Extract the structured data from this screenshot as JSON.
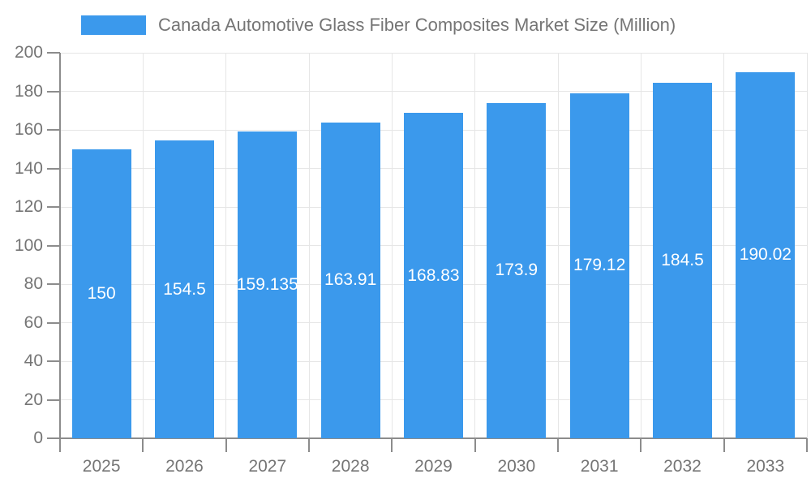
{
  "legend": {
    "label": "Canada Automotive Glass Fiber Composites Market Size (Million)"
  },
  "colors": {
    "bar": "#3B99EC",
    "grid": "#E6E6E6",
    "axis_line": "#8C8C8C",
    "axis_text": "#757575",
    "value_label": "#FFFFFF"
  },
  "chart_data": {
    "type": "bar",
    "title": "Canada Automotive Glass Fiber Composites Market Size (Million)",
    "categories": [
      "2025",
      "2026",
      "2027",
      "2028",
      "2029",
      "2030",
      "2031",
      "2032",
      "2033"
    ],
    "values": [
      150,
      154.5,
      159.135,
      163.91,
      168.83,
      173.9,
      179.12,
      184.5,
      190.02
    ],
    "value_labels": [
      "150",
      "154.5",
      "159.135",
      "163.91",
      "168.83",
      "173.9",
      "179.12",
      "184.5",
      "190.02"
    ],
    "xlabel": "",
    "ylabel": "",
    "ylim": [
      0,
      200
    ],
    "yticks": [
      0,
      20,
      40,
      60,
      80,
      100,
      120,
      140,
      160,
      180,
      200
    ],
    "grid": true,
    "legend_position": "top",
    "value_label_position": "inside-center"
  }
}
